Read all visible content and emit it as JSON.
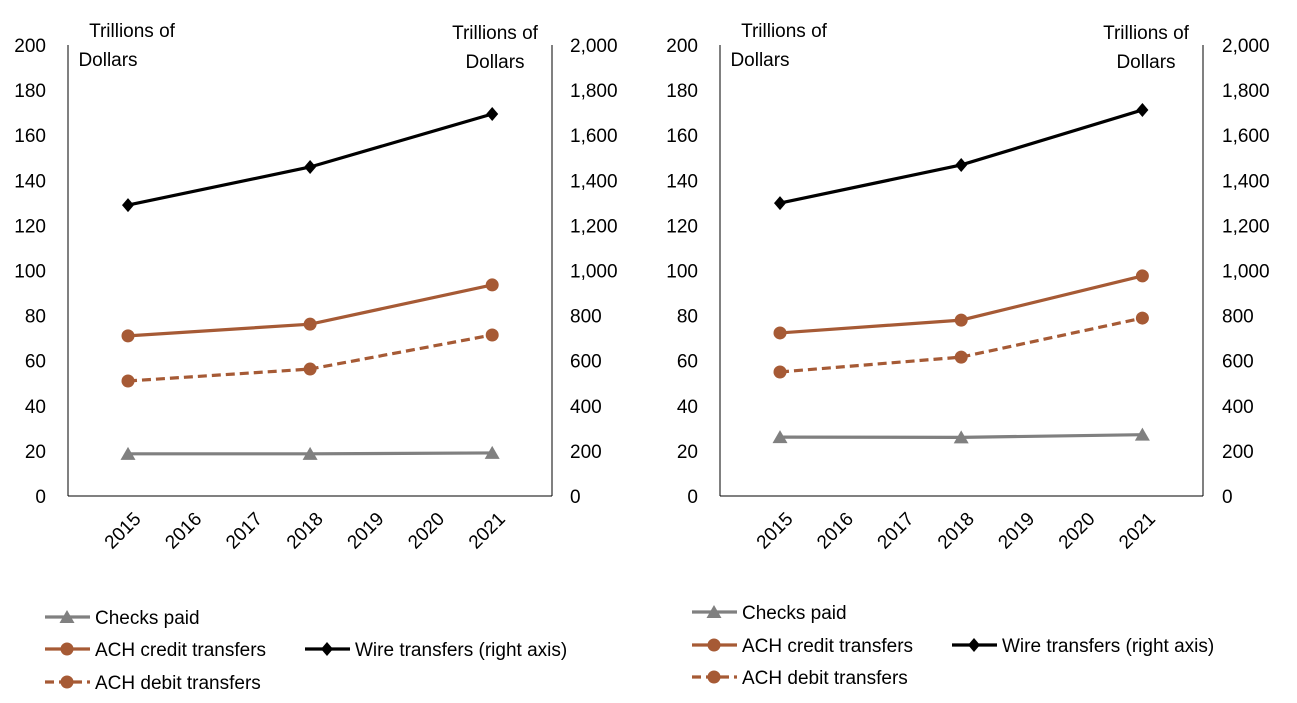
{
  "chart_data": [
    {
      "type": "line",
      "left_axis_title": [
        "Trillions of",
        "Dollars"
      ],
      "right_axis_title": [
        "Trillions of",
        "Dollars"
      ],
      "categories": [
        "2015",
        "2016",
        "2017",
        "2018",
        "2019",
        "2020",
        "2021"
      ],
      "ylim_left": [
        0,
        200
      ],
      "yticks_left": [
        "0",
        "20",
        "40",
        "60",
        "80",
        "100",
        "120",
        "140",
        "160",
        "180",
        "200"
      ],
      "ylim_right": [
        0,
        2000
      ],
      "yticks_right": [
        "0",
        "200",
        "400",
        "600",
        "800",
        "1,000",
        "1,200",
        "1,400",
        "1,600",
        "1,800",
        "2,000"
      ],
      "grid": false,
      "legend_position": "bottom",
      "series": [
        {
          "name": "Checks paid",
          "axis": "left",
          "x": [
            "2015",
            "2018",
            "2021"
          ],
          "values": [
            18.7,
            18.7,
            19.1
          ],
          "color": "#808080",
          "marker": "triangle",
          "dash": false
        },
        {
          "name": "ACH credit transfers",
          "axis": "left",
          "x": [
            "2015",
            "2018",
            "2021"
          ],
          "values": [
            71.0,
            76.2,
            93.6
          ],
          "color": "#A65A35",
          "marker": "circle",
          "dash": false
        },
        {
          "name": "ACH debit transfers",
          "axis": "left",
          "x": [
            "2015",
            "2018",
            "2021"
          ],
          "values": [
            51.0,
            56.3,
            71.4
          ],
          "color": "#A65A35",
          "marker": "circle",
          "dash": true
        },
        {
          "name": "Wire transfers (right axis)",
          "axis": "right",
          "x": [
            "2015",
            "2018",
            "2021"
          ],
          "values": [
            1290,
            1459,
            1694
          ],
          "color": "#000000",
          "marker": "diamond",
          "dash": false
        }
      ]
    },
    {
      "type": "line",
      "left_axis_title": [
        "Trillions of",
        "Dollars"
      ],
      "right_axis_title": [
        "Trillions of",
        "Dollars"
      ],
      "categories": [
        "2015",
        "2016",
        "2017",
        "2018",
        "2019",
        "2020",
        "2021"
      ],
      "ylim_left": [
        0,
        200
      ],
      "yticks_left": [
        "0",
        "20",
        "40",
        "60",
        "80",
        "100",
        "120",
        "140",
        "160",
        "180",
        "200"
      ],
      "ylim_right": [
        0,
        2000
      ],
      "yticks_right": [
        "0",
        "200",
        "400",
        "600",
        "800",
        "1,000",
        "1,200",
        "1,400",
        "1,600",
        "1,800",
        "2,000"
      ],
      "grid": false,
      "legend_position": "bottom",
      "series": [
        {
          "name": "Checks paid",
          "axis": "left",
          "x": [
            "2015",
            "2018",
            "2021"
          ],
          "values": [
            26.1,
            26.0,
            27.2
          ],
          "color": "#808080",
          "marker": "triangle",
          "dash": false
        },
        {
          "name": "ACH credit transfers",
          "axis": "left",
          "x": [
            "2015",
            "2018",
            "2021"
          ],
          "values": [
            72.3,
            78.0,
            97.6
          ],
          "color": "#A65A35",
          "marker": "circle",
          "dash": false
        },
        {
          "name": "ACH debit transfers",
          "axis": "left",
          "x": [
            "2015",
            "2018",
            "2021"
          ],
          "values": [
            55.0,
            61.6,
            78.9
          ],
          "color": "#A65A35",
          "marker": "circle",
          "dash": true
        },
        {
          "name": "Wire transfers (right axis)",
          "axis": "right",
          "x": [
            "2015",
            "2018",
            "2021"
          ],
          "values": [
            1299,
            1468,
            1712
          ],
          "color": "#000000",
          "marker": "diamond",
          "dash": false
        }
      ]
    }
  ]
}
